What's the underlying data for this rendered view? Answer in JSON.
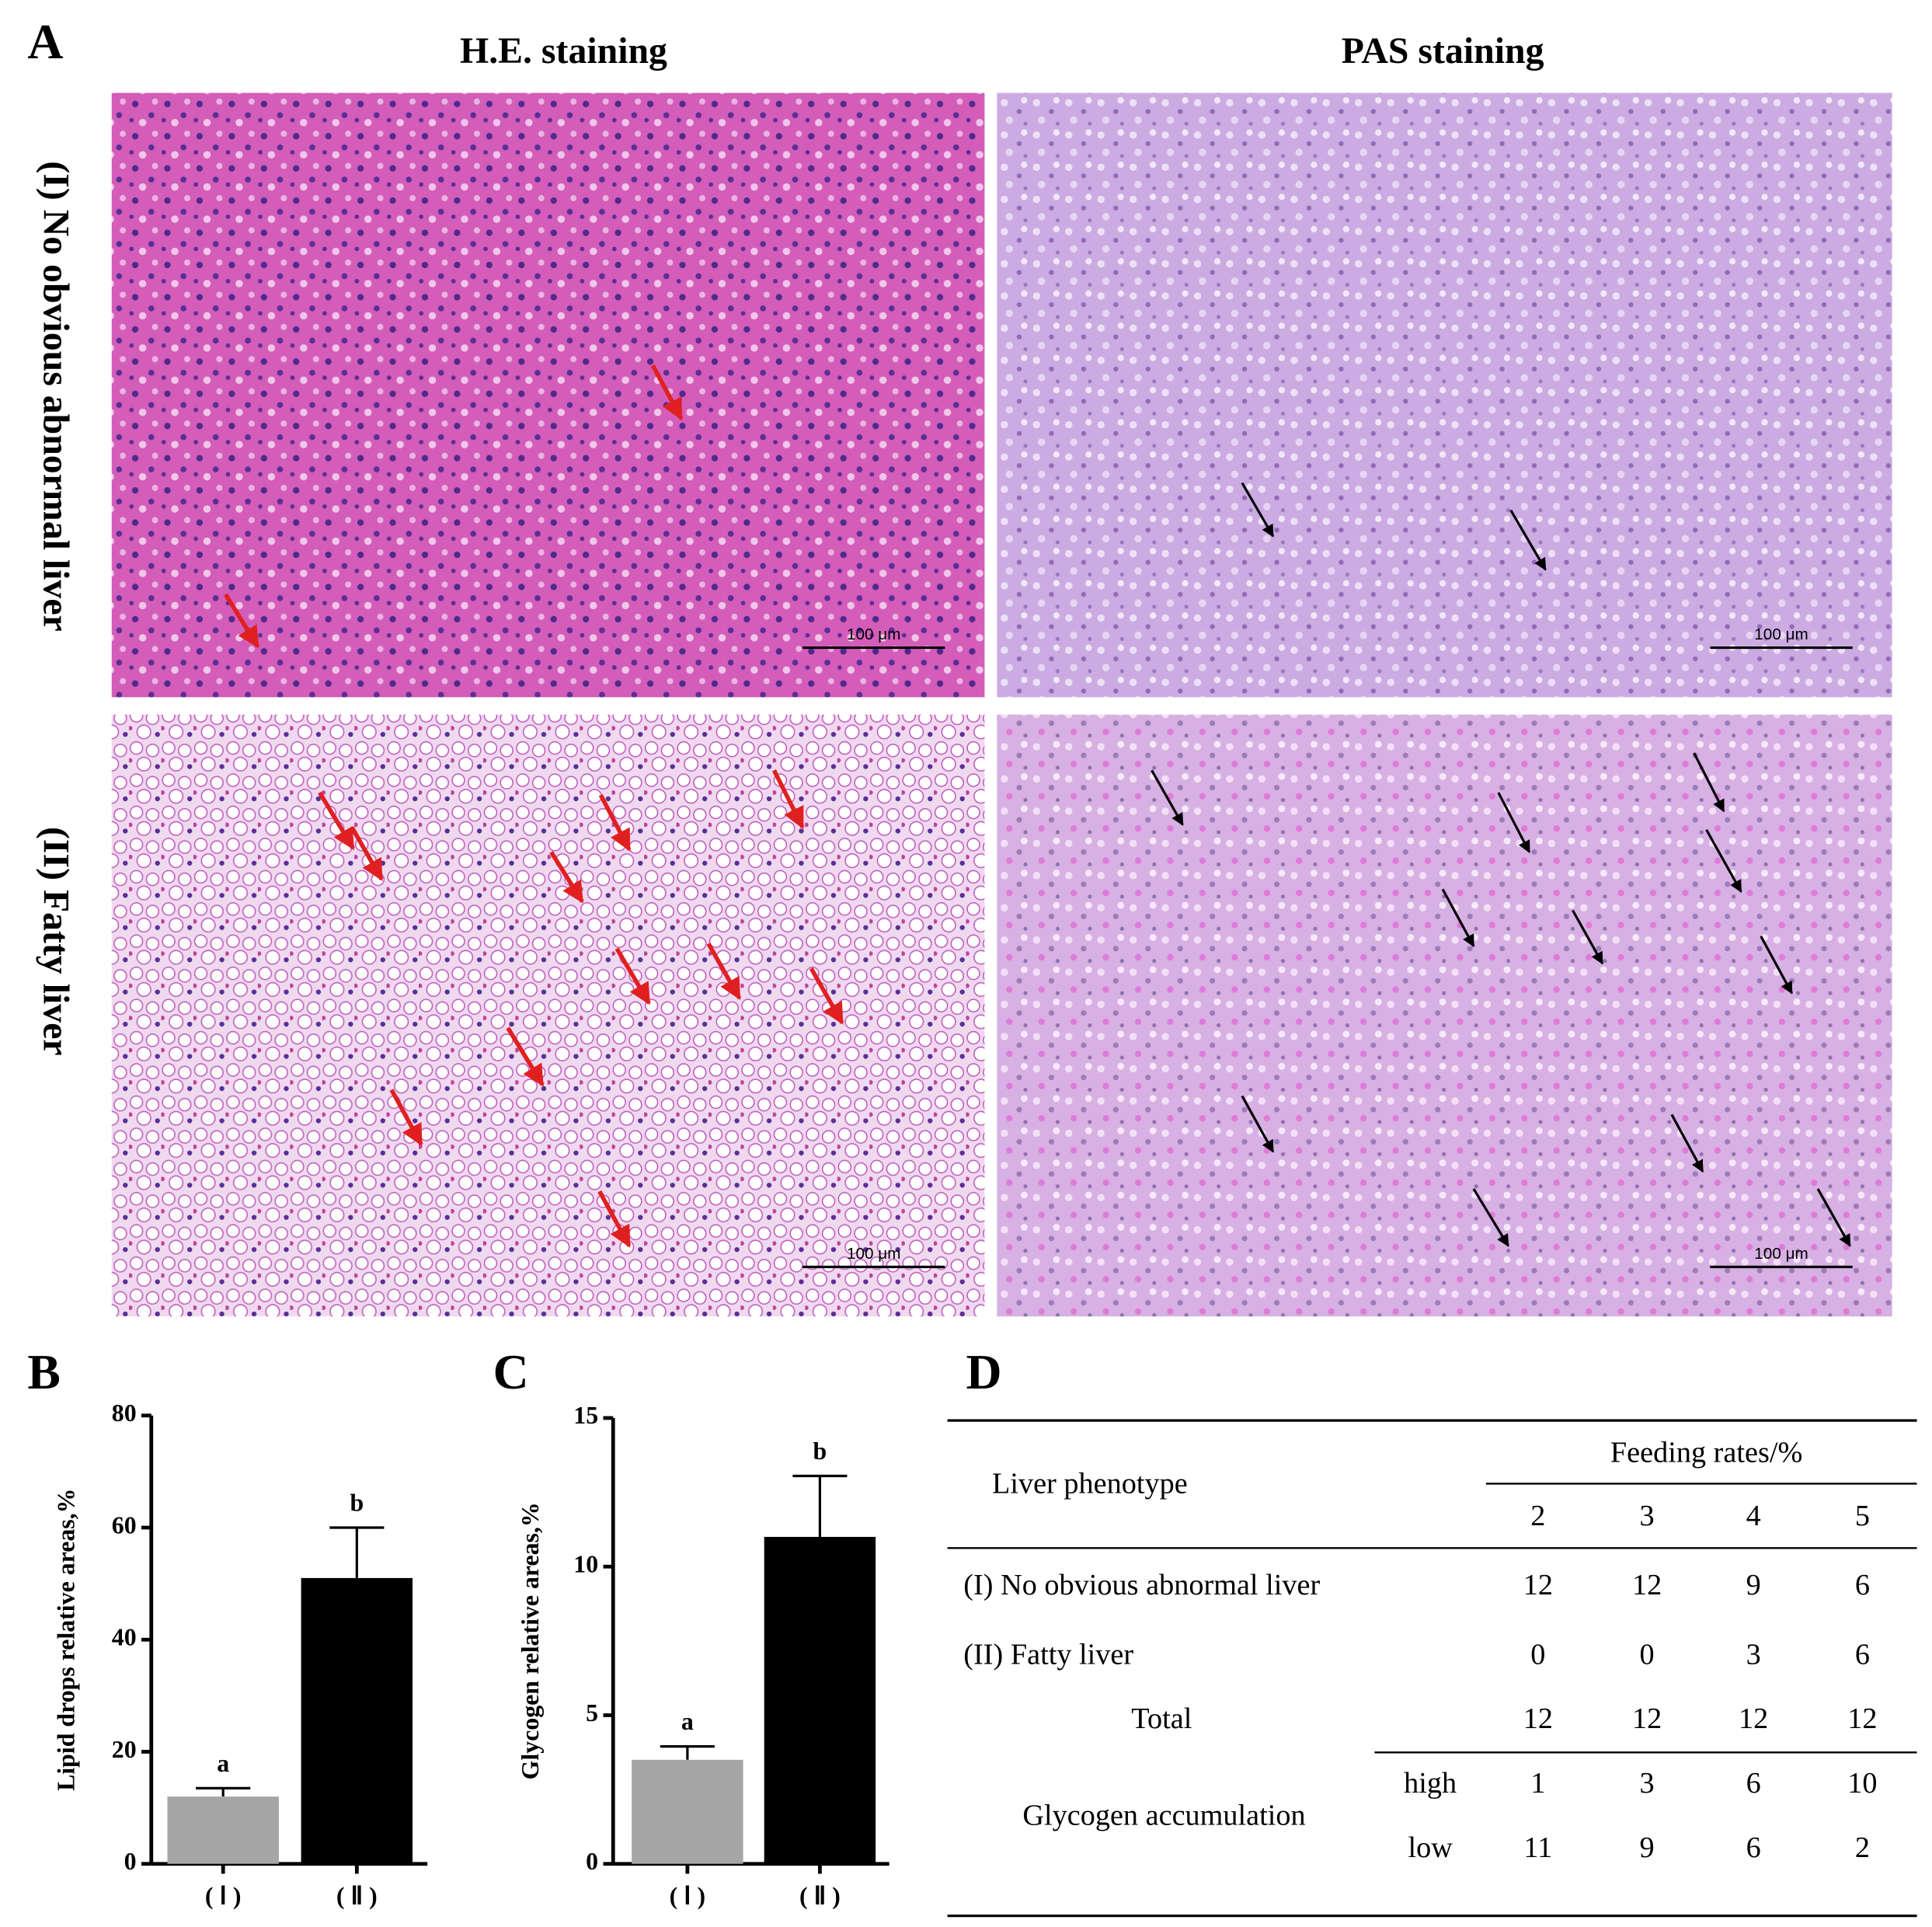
{
  "panel_labels": [
    "A",
    "B",
    "C",
    "D"
  ],
  "micrographs": {
    "columns": [
      "H.E. staining",
      "PAS staining"
    ],
    "rows": [
      "(I) No obvious abnormal liver",
      "(II) Fatty liver"
    ],
    "scale_bar": "100 μm"
  },
  "chart_data": [
    {
      "type": "bar",
      "ylabel": "Lipid drops relative areas,%",
      "categories": [
        "( Ⅰ )",
        "( Ⅱ )"
      ],
      "values": [
        12,
        51
      ],
      "errors": [
        1.5,
        9
      ],
      "annotations": [
        "a",
        "b"
      ],
      "colors": [
        "#a6a6a6",
        "#000000"
      ],
      "ylim": [
        0,
        80
      ],
      "yticks": [
        0,
        20,
        40,
        60,
        80
      ]
    },
    {
      "type": "bar",
      "ylabel": "Glycogen relative areas,%",
      "categories": [
        "( Ⅰ )",
        "( Ⅱ )"
      ],
      "values": [
        3.5,
        11
      ],
      "errors": [
        0.45,
        2.05
      ],
      "annotations": [
        "a",
        "b"
      ],
      "colors": [
        "#a6a6a6",
        "#000000"
      ],
      "ylim": [
        0,
        15
      ],
      "yticks": [
        0,
        5,
        10,
        15
      ]
    }
  ],
  "table": {
    "header": "Liver phenotype",
    "group_header": "Feeding rates/%",
    "columns": [
      2,
      3,
      4,
      5
    ],
    "rows": [
      {
        "label": "(I) No obvious abnormal liver",
        "values": [
          12,
          12,
          9,
          6
        ]
      },
      {
        "label": "(II)  Fatty liver",
        "values": [
          0,
          0,
          3,
          6
        ]
      },
      {
        "label": "Total",
        "values": [
          12,
          12,
          12,
          12
        ]
      }
    ],
    "glycogen": {
      "label": "Glycogen accumulation",
      "rows": [
        {
          "label": "high",
          "values": [
            1,
            3,
            6,
            10
          ]
        },
        {
          "label": "low",
          "values": [
            11,
            9,
            6,
            2
          ]
        }
      ]
    }
  }
}
